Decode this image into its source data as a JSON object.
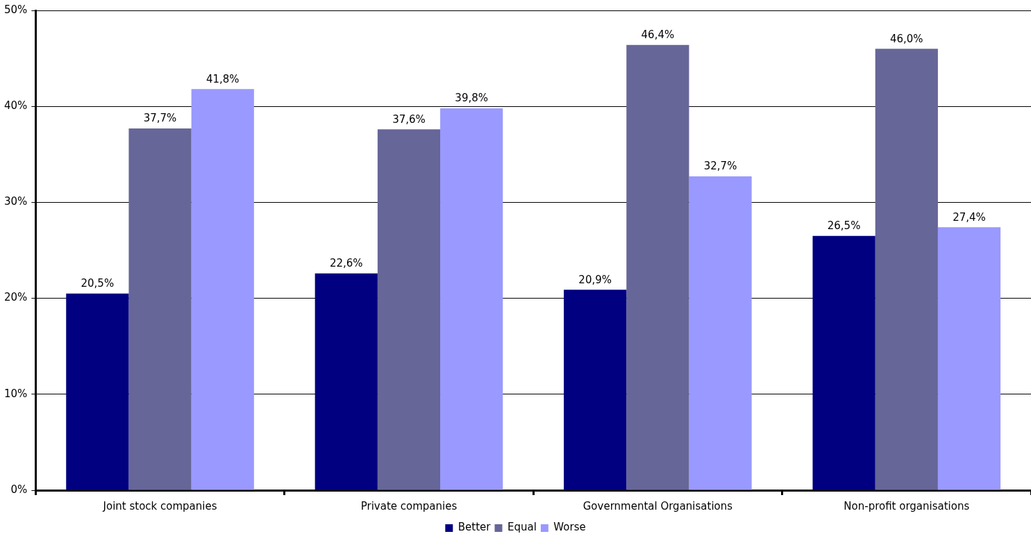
{
  "chart_data": {
    "type": "bar",
    "categories": [
      "Joint stock companies",
      "Private companies",
      "Governmental Organisations",
      "Non-profit organisations"
    ],
    "series": [
      {
        "name": "Better",
        "color": "#000080",
        "values": [
          20.5,
          22.6,
          20.9,
          26.5
        ],
        "value_labels": [
          "20,5%",
          "22,6%",
          "20,9%",
          "26,5%"
        ]
      },
      {
        "name": "Equal",
        "color": "#666699",
        "values": [
          37.7,
          37.6,
          46.4,
          46.0
        ],
        "value_labels": [
          "37,7%",
          "37,6%",
          "46,4%",
          "46,0%"
        ]
      },
      {
        "name": "Worse",
        "color": "#9999ff",
        "values": [
          41.8,
          39.8,
          32.7,
          27.4
        ],
        "value_labels": [
          "41,8%",
          "39,8%",
          "32,7%",
          "27,4%"
        ]
      }
    ],
    "ylim": [
      0,
      50
    ],
    "yticks": [
      {
        "value": 0,
        "label": "0%"
      },
      {
        "value": 10,
        "label": "10%"
      },
      {
        "value": 20,
        "label": "20%"
      },
      {
        "value": 30,
        "label": "30%"
      },
      {
        "value": 40,
        "label": "40%"
      },
      {
        "value": 50,
        "label": "50%"
      }
    ],
    "grid": "y",
    "legend": "bottom"
  }
}
